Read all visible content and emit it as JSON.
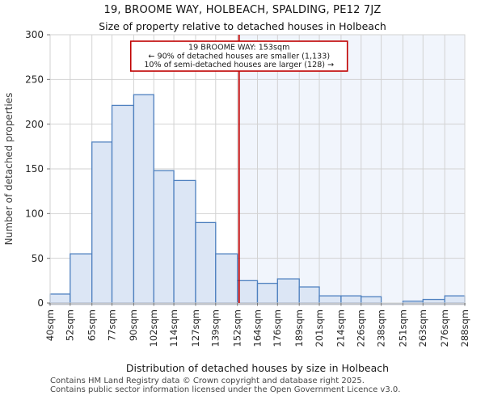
{
  "title": "19, BROOME WAY, HOLBEACH, SPALDING, PE12 7JZ",
  "subtitle": "Size of property relative to detached houses in Holbeach",
  "footer": {
    "line1": "Contains HM Land Registry data © Crown copyright and database right 2025.",
    "line2": "Contains public sector information licensed under the Open Government Licence v3.0."
  },
  "chart_data": {
    "type": "bar",
    "title": "19, BROOME WAY, HOLBEACH, SPALDING, PE12 7JZ",
    "subtitle": "Size of property relative to detached houses in Holbeach",
    "xlabel": "Distribution of detached houses by size in Holbeach",
    "ylabel": "Number of detached properties",
    "bin_edges": [
      40,
      52,
      65,
      77,
      90,
      102,
      114,
      127,
      139,
      152,
      164,
      176,
      189,
      201,
      214,
      226,
      238,
      251,
      263,
      276,
      288
    ],
    "bin_labels": [
      "40sqm",
      "52sqm",
      "65sqm",
      "77sqm",
      "90sqm",
      "102sqm",
      "114sqm",
      "127sqm",
      "139sqm",
      "152sqm",
      "164sqm",
      "176sqm",
      "189sqm",
      "201sqm",
      "214sqm",
      "226sqm",
      "238sqm",
      "251sqm",
      "263sqm",
      "276sqm",
      "288sqm"
    ],
    "values": [
      10,
      55,
      180,
      221,
      233,
      148,
      137,
      90,
      55,
      25,
      22,
      27,
      18,
      8,
      8,
      7,
      0,
      2,
      4,
      8
    ],
    "ylim": [
      0,
      300
    ],
    "yticks": [
      0,
      50,
      100,
      150,
      200,
      250,
      300
    ],
    "grid": true,
    "legend": "none",
    "marker": {
      "sqm": 153,
      "annotation_lines": [
        "19 BROOME WAY: 153sqm",
        "← 90% of detached houses are smaller (1,133)",
        "10% of semi-detached houses are larger (128) →"
      ]
    },
    "colors": {
      "bar_fill": "#dce6f5",
      "bar_stroke": "#4e80bf",
      "grid": "#d2d2d2",
      "shade_right_of_marker": "#f1f5fc",
      "marker_red": "#c00000",
      "baseline": "#b9bec6",
      "tick_text": "#262626",
      "annotation_bg": "#ffffff"
    }
  }
}
